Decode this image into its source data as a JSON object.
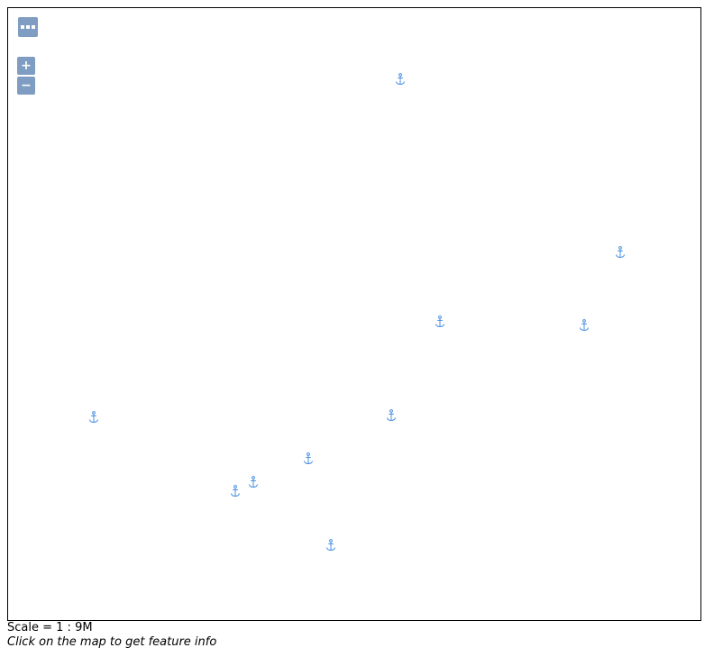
{
  "map": {
    "layer_switcher": {
      "icon": "layers-menu-icon"
    },
    "zoom_in_label": "+",
    "zoom_out_label": "−",
    "marker_icon": "anchor-icon",
    "marker_color": "#4a90e2",
    "marker_count": 10
  },
  "footer": {
    "scale_prefix": "Scale = 1 : ",
    "scale_value": "9M",
    "info_text": "Click on the map to get feature info"
  }
}
